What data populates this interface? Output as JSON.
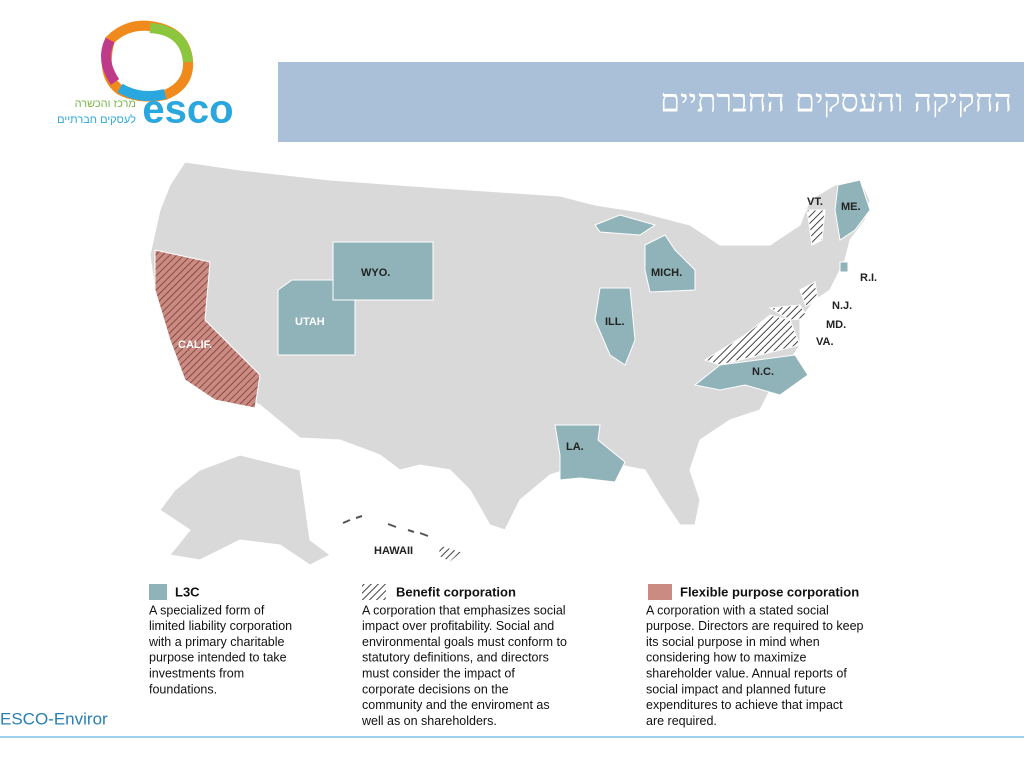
{
  "logo": {
    "brand": "esco",
    "tagline": [
      "מרכז והכשרה",
      "לעסקים חברתיים"
    ]
  },
  "header": {
    "title": "החקיקה והעסקים החברתיים"
  },
  "map": {
    "labels": [
      "VT.",
      "ME.",
      "R.I.",
      "N.J.",
      "MD.",
      "VA.",
      "N.C.",
      "MICH.",
      "ILL.",
      "LA.",
      "WYO.",
      "UTAH",
      "CALIF.",
      "HAWAII"
    ]
  },
  "legend": [
    {
      "title": "L3C",
      "lines": [
        "A specialized form of",
        "limited liability corporation",
        "with a primary charitable",
        "purpose intended to take",
        "investments from",
        "foundations."
      ]
    },
    {
      "title": "Benefit corporation",
      "lines": [
        "A corporation that emphasizes social",
        "impact over profitability. Social and",
        "environmental goals must conform to",
        "statutory definitions, and directors",
        "must consider the impact of",
        "corporate decisions on the",
        "community and the enviroment as",
        "well as on shareholders."
      ]
    },
    {
      "title": "Flexible purpose corporation",
      "lines": [
        "A corporation with a stated social",
        "purpose. Directors are required to keep",
        "its social purpose in mind when",
        "considering how to maximize",
        "shareholder value. Annual reports of",
        "social impact and planned future",
        "expenditures to achieve that impact",
        "are required."
      ]
    }
  ],
  "footer": {
    "text": "ESCO-Enviror"
  }
}
